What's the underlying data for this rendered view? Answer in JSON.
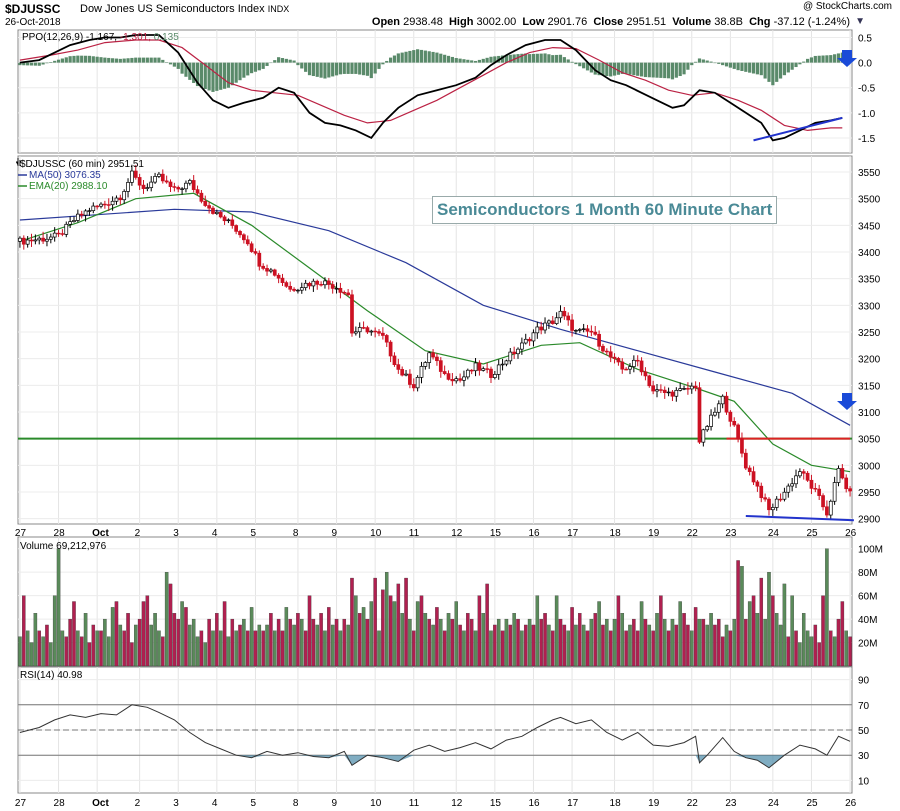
{
  "header": {
    "symbol": "$DJUSSC",
    "name": "Dow Jones US Semiconductors Index",
    "exchange": "INDX",
    "date": "26-Oct-2018",
    "logo": "@ StockCharts.com",
    "open_label": "Open",
    "open": "2938.48",
    "high_label": "High",
    "high": "3002.00",
    "low_label": "Low",
    "low": "2901.76",
    "close_label": "Close",
    "close": "2951.51",
    "volume_label": "Volume",
    "volume": "38.8B",
    "chg_label": "Chg",
    "chg": "-37.12 (-1.24%)",
    "dropdown_icon": "triangle-down-icon"
  },
  "annotation": "Semiconductors 1 Month 60 Minute Chart",
  "colors": {
    "up": "#ffffff",
    "down": "#cc1122",
    "ma50": "#2a3a9a",
    "ema20": "#2a8a2a",
    "ppo": "#000000",
    "signal": "#bb2244",
    "hist": "#5a8a6a",
    "vol_up": "#5a8a5a",
    "vol_down": "#b02050",
    "support": "#2a8a2a",
    "resist": "#dd2222",
    "trend": "#2233cc",
    "arrow": "#1a4ad8",
    "rsi": "#4a8aa8"
  },
  "chart_data": [
    {
      "type": "line",
      "panel": "ppo",
      "title": "PPO(12,26,9)",
      "values_text": {
        "ppo": "-1.167",
        "signal": "-1.301",
        "hist": "0.135"
      },
      "y_ticks": [
        "0.5",
        "0.0",
        "-0.5",
        "-1.0",
        "-1.5"
      ],
      "ylim": [
        -1.8,
        0.65
      ],
      "ppo_points": [
        [
          0,
          0
        ],
        [
          5,
          0.05
        ],
        [
          9,
          0.2
        ],
        [
          13,
          0.35
        ],
        [
          18,
          0.45
        ],
        [
          22,
          0.5
        ],
        [
          26,
          0.5
        ],
        [
          30,
          0.55
        ],
        [
          36,
          0.55
        ],
        [
          41,
          0.2
        ],
        [
          46,
          -0.4
        ],
        [
          50,
          -0.75
        ],
        [
          54,
          -0.9
        ],
        [
          58,
          -0.8
        ],
        [
          63,
          -0.7
        ],
        [
          67,
          -0.5
        ],
        [
          71,
          -0.6
        ],
        [
          75,
          -1.0
        ],
        [
          79,
          -1.2
        ],
        [
          83,
          -1.25
        ],
        [
          87,
          -1.35
        ],
        [
          91,
          -1.5
        ],
        [
          94,
          -1.2
        ],
        [
          98,
          -0.9
        ],
        [
          103,
          -0.65
        ],
        [
          108,
          -0.55
        ],
        [
          113,
          -0.45
        ],
        [
          118,
          -0.3
        ],
        [
          122,
          -0.05
        ],
        [
          126,
          0.15
        ],
        [
          131,
          0.35
        ],
        [
          136,
          0.45
        ],
        [
          140,
          0.45
        ],
        [
          144,
          0.25
        ],
        [
          149,
          -0.15
        ],
        [
          153,
          -0.35
        ],
        [
          157,
          -0.45
        ],
        [
          161,
          -0.6
        ],
        [
          165,
          -0.75
        ],
        [
          169,
          -0.9
        ],
        [
          172,
          -0.85
        ],
        [
          176,
          -0.55
        ],
        [
          180,
          -0.6
        ],
        [
          184,
          -0.8
        ],
        [
          188,
          -1.0
        ],
        [
          192,
          -1.2
        ],
        [
          195,
          -1.55
        ],
        [
          198,
          -1.5
        ],
        [
          202,
          -1.35
        ],
        [
          206,
          -1.2
        ],
        [
          210,
          -1.15
        ],
        [
          213,
          -1.1
        ]
      ],
      "signal_points": [
        [
          0,
          0.05
        ],
        [
          8,
          0.15
        ],
        [
          15,
          0.25
        ],
        [
          22,
          0.4
        ],
        [
          30,
          0.45
        ],
        [
          36,
          0.45
        ],
        [
          42,
          0.3
        ],
        [
          48,
          -0.05
        ],
        [
          54,
          -0.4
        ],
        [
          60,
          -0.55
        ],
        [
          66,
          -0.6
        ],
        [
          72,
          -0.65
        ],
        [
          78,
          -0.85
        ],
        [
          84,
          -1.05
        ],
        [
          90,
          -1.2
        ],
        [
          96,
          -1.15
        ],
        [
          102,
          -0.95
        ],
        [
          108,
          -0.75
        ],
        [
          114,
          -0.5
        ],
        [
          120,
          -0.25
        ],
        [
          126,
          0.0
        ],
        [
          132,
          0.2
        ],
        [
          138,
          0.3
        ],
        [
          144,
          0.28
        ],
        [
          150,
          0.05
        ],
        [
          156,
          -0.2
        ],
        [
          162,
          -0.35
        ],
        [
          168,
          -0.55
        ],
        [
          174,
          -0.65
        ],
        [
          180,
          -0.6
        ],
        [
          186,
          -0.75
        ],
        [
          192,
          -0.95
        ],
        [
          198,
          -1.25
        ],
        [
          204,
          -1.35
        ],
        [
          210,
          -1.3
        ],
        [
          213,
          -1.3
        ]
      ],
      "trendline": [
        [
          190,
          -1.55
        ],
        [
          213,
          -1.1
        ]
      ]
    },
    {
      "type": "candlestick",
      "panel": "price",
      "title": "$DJUSSC (60 min) 2951.51",
      "legend": [
        {
          "name": "MA(50) 3076.35",
          "color": "#2a3a9a"
        },
        {
          "name": "EMA(20) 2988.10",
          "color": "#2a8a2a"
        }
      ],
      "y_ticks": [
        "3550",
        "3500",
        "3450",
        "3400",
        "3350",
        "3300",
        "3250",
        "3200",
        "3150",
        "3100",
        "3050",
        "3000",
        "2950",
        "2900"
      ],
      "ylim": [
        2890,
        3580
      ],
      "close_anchors": [
        [
          0,
          3420
        ],
        [
          6,
          3425
        ],
        [
          10,
          3430
        ],
        [
          14,
          3460
        ],
        [
          18,
          3480
        ],
        [
          22,
          3490
        ],
        [
          26,
          3505
        ],
        [
          29,
          3545
        ],
        [
          32,
          3520
        ],
        [
          36,
          3540
        ],
        [
          40,
          3515
        ],
        [
          44,
          3530
        ],
        [
          47,
          3500
        ],
        [
          51,
          3470
        ],
        [
          55,
          3450
        ],
        [
          59,
          3420
        ],
        [
          62,
          3380
        ],
        [
          66,
          3360
        ],
        [
          70,
          3330
        ],
        [
          74,
          3340
        ],
        [
          78,
          3345
        ],
        [
          82,
          3335
        ],
        [
          85,
          3320
        ],
        [
          86,
          3250
        ],
        [
          90,
          3255
        ],
        [
          94,
          3240
        ],
        [
          98,
          3180
        ],
        [
          102,
          3150
        ],
        [
          106,
          3210
        ],
        [
          110,
          3170
        ],
        [
          114,
          3160
        ],
        [
          118,
          3185
        ],
        [
          122,
          3170
        ],
        [
          126,
          3200
        ],
        [
          130,
          3225
        ],
        [
          134,
          3255
        ],
        [
          138,
          3270
        ],
        [
          140,
          3285
        ],
        [
          144,
          3250
        ],
        [
          148,
          3250
        ],
        [
          152,
          3210
        ],
        [
          156,
          3180
        ],
        [
          160,
          3195
        ],
        [
          164,
          3140
        ],
        [
          168,
          3135
        ],
        [
          172,
          3140
        ],
        [
          175,
          3150
        ],
        [
          176,
          3045
        ],
        [
          178,
          3075
        ],
        [
          182,
          3125
        ],
        [
          185,
          3070
        ],
        [
          188,
          3000
        ],
        [
          191,
          2960
        ],
        [
          194,
          2915
        ],
        [
          198,
          2950
        ],
        [
          202,
          2990
        ],
        [
          206,
          2950
        ],
        [
          209,
          2910
        ],
        [
          212,
          2990
        ],
        [
          215,
          2945
        ]
      ],
      "ma50_points": [
        [
          0,
          3460
        ],
        [
          20,
          3470
        ],
        [
          40,
          3480
        ],
        [
          60,
          3475
        ],
        [
          80,
          3440
        ],
        [
          100,
          3380
        ],
        [
          120,
          3300
        ],
        [
          140,
          3255
        ],
        [
          160,
          3215
        ],
        [
          180,
          3175
        ],
        [
          200,
          3135
        ],
        [
          210,
          3095
        ],
        [
          215,
          3075
        ]
      ],
      "ema20_points": [
        [
          0,
          3420
        ],
        [
          15,
          3455
        ],
        [
          30,
          3500
        ],
        [
          45,
          3510
        ],
        [
          60,
          3450
        ],
        [
          75,
          3370
        ],
        [
          90,
          3290
        ],
        [
          105,
          3215
        ],
        [
          120,
          3190
        ],
        [
          135,
          3225
        ],
        [
          145,
          3230
        ],
        [
          160,
          3180
        ],
        [
          175,
          3145
        ],
        [
          185,
          3120
        ],
        [
          195,
          3040
        ],
        [
          205,
          3000
        ],
        [
          215,
          2988
        ]
      ],
      "support_level": 3050,
      "resistance_segment": [
        [
          183,
          3050
        ],
        [
          215,
          3050
        ]
      ],
      "trendline": [
        [
          188,
          2905
        ],
        [
          216,
          2897
        ]
      ]
    },
    {
      "type": "bar",
      "panel": "volume",
      "title": "Volume 69,212,976",
      "y_ticks": [
        "100M",
        "80M",
        "60M",
        "40M",
        "20M"
      ],
      "ylim": [
        0,
        110
      ],
      "values": [
        25,
        60,
        30,
        20,
        45,
        30,
        25,
        35,
        20,
        60,
        100,
        30,
        25,
        40,
        55,
        30,
        25,
        45,
        20,
        35,
        30,
        30,
        40,
        25,
        50,
        55,
        35,
        30,
        45,
        20,
        35,
        40,
        55,
        60,
        35,
        45,
        30,
        25,
        80,
        70,
        45,
        40,
        55,
        50,
        35,
        40,
        25,
        30,
        20,
        40,
        30,
        45,
        30,
        55,
        25,
        40,
        30,
        35,
        40,
        30,
        50,
        30,
        35,
        30,
        35,
        45,
        30,
        40,
        30,
        50,
        40,
        35,
        45,
        40,
        30,
        60,
        40,
        35,
        45,
        30,
        50,
        35,
        40,
        30,
        40,
        35,
        75,
        60,
        45,
        50,
        40,
        55,
        75,
        30,
        65,
        80,
        60,
        55,
        70,
        45,
        75,
        40,
        30,
        55,
        60,
        45,
        40,
        35,
        50,
        40,
        30,
        45,
        40,
        55,
        35,
        30,
        45,
        40,
        30,
        60,
        45,
        70,
        30,
        35,
        40,
        30,
        40,
        35,
        45,
        40,
        30,
        35,
        40,
        35,
        60,
        40,
        45,
        35,
        30,
        60,
        40,
        35,
        30,
        50,
        35,
        45,
        35,
        30,
        40,
        45,
        55,
        35,
        40,
        30,
        40,
        60,
        45,
        30,
        35,
        40,
        30,
        55,
        40,
        35,
        30,
        45,
        60,
        40,
        30,
        40,
        35,
        55,
        45,
        35,
        30,
        50,
        40,
        40,
        35,
        45,
        35,
        40,
        25,
        35,
        30,
        40,
        90,
        85,
        40,
        55,
        60,
        45,
        75,
        40,
        80,
        60,
        45,
        35,
        70
      ],
      "up_flags": "gdgggdgdggggdddgdgddgdgggdgdddgdddgggdgdddgdgggdgdgdgdgdgdgdgdgdgdgddgdgdgdddgdgdgdgdgdgdgdgdgdgdgdgdgdgdgdgdgdgdgdgddgdgdgdgdgdgdgdgdgddgdgddgdgdgdgdgdgdgdgdgddgdgdgdgdgdgddgdgdggdddgdgdgdgdgdg"
    },
    {
      "type": "line",
      "panel": "rsi",
      "title": "RSI(14) 40.98",
      "y_ticks": [
        "90",
        "70",
        "50",
        "30",
        "10"
      ],
      "ylim": [
        0,
        100
      ],
      "levels": [
        70,
        50,
        30
      ],
      "points": [
        [
          0,
          48
        ],
        [
          5,
          52
        ],
        [
          9,
          58
        ],
        [
          13,
          62
        ],
        [
          17,
          60
        ],
        [
          21,
          63
        ],
        [
          25,
          62
        ],
        [
          29,
          70
        ],
        [
          33,
          68
        ],
        [
          36,
          64
        ],
        [
          40,
          58
        ],
        [
          44,
          48
        ],
        [
          48,
          40
        ],
        [
          52,
          35
        ],
        [
          56,
          30
        ],
        [
          60,
          28
        ],
        [
          64,
          33
        ],
        [
          68,
          30
        ],
        [
          72,
          32
        ],
        [
          76,
          29
        ],
        [
          80,
          28
        ],
        [
          84,
          33
        ],
        [
          86,
          22
        ],
        [
          90,
          30
        ],
        [
          94,
          28
        ],
        [
          98,
          25
        ],
        [
          102,
          34
        ],
        [
          106,
          38
        ],
        [
          110,
          33
        ],
        [
          114,
          36
        ],
        [
          118,
          40
        ],
        [
          122,
          35
        ],
        [
          126,
          42
        ],
        [
          130,
          45
        ],
        [
          134,
          52
        ],
        [
          138,
          58
        ],
        [
          140,
          60
        ],
        [
          144,
          55
        ],
        [
          148,
          58
        ],
        [
          152,
          48
        ],
        [
          156,
          42
        ],
        [
          160,
          48
        ],
        [
          164,
          38
        ],
        [
          168,
          37
        ],
        [
          172,
          40
        ],
        [
          175,
          45
        ],
        [
          176,
          24
        ],
        [
          178,
          30
        ],
        [
          182,
          44
        ],
        [
          185,
          33
        ],
        [
          188,
          28
        ],
        [
          191,
          26
        ],
        [
          194,
          20
        ],
        [
          198,
          30
        ],
        [
          202,
          38
        ],
        [
          206,
          35
        ],
        [
          209,
          30
        ],
        [
          212,
          45
        ],
        [
          215,
          41
        ]
      ]
    }
  ],
  "x_axis": {
    "labels": [
      "27",
      "28",
      "Oct",
      "2",
      "3",
      "4",
      "5",
      "8",
      "9",
      "10",
      "11",
      "12",
      "15",
      "16",
      "17",
      "18",
      "19",
      "22",
      "23",
      "24",
      "25",
      "26"
    ]
  }
}
